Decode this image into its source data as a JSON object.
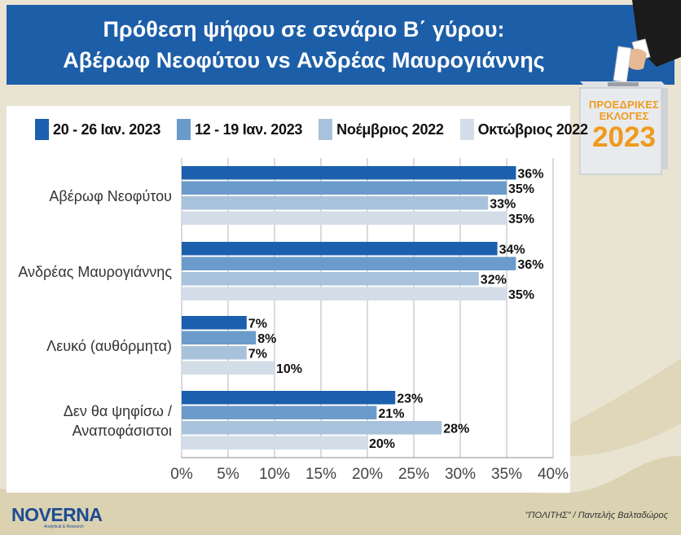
{
  "header": {
    "title_line1": "Πρόθεση ψήφου σε σενάριο Β΄ γύρου:",
    "title_line2": "Αβέρωφ Νεοφύτου vs Ανδρέας Μαυρογιάννης"
  },
  "ballot_box": {
    "line1": "ΠΡΟΕΔΡΙΚΕΣ",
    "line2": "ΕΚΛΟΓΕΣ",
    "line3": "2023"
  },
  "footer": {
    "logo": "NOVERNA",
    "logo_tagline": "Analytical & Research",
    "credit": "\"ΠΟΛΙΤΗΣ\" / Παντελής Βαλταδώρος"
  },
  "chart_data": {
    "type": "bar",
    "orientation": "horizontal",
    "title": "Πρόθεση ψήφου σε σενάριο Β΄ γύρου: Αβέρωφ Νεοφύτου vs Ανδρέας Μαυρογιάννης",
    "xlabel": "",
    "ylabel": "",
    "xlim": [
      0,
      40
    ],
    "x_ticks": [
      0,
      5,
      10,
      15,
      20,
      25,
      30,
      35,
      40
    ],
    "x_tick_labels": [
      "0%",
      "5%",
      "10%",
      "15%",
      "20%",
      "25%",
      "30%",
      "35%",
      "40%"
    ],
    "grid": true,
    "legend_position": "top",
    "categories": [
      [
        "Αβέρωφ Νεοφύτου"
      ],
      [
        "Ανδρέας Μαυρογιάννης"
      ],
      [
        "Λευκό (αυθόρμητα)"
      ],
      [
        "Δεν θα ψηφίσω /",
        "Αναποφάσιστοι"
      ]
    ],
    "series": [
      {
        "name": "20 - 26 Ιαν. 2023",
        "color": "#1c5fae",
        "values": [
          36,
          34,
          7,
          23
        ]
      },
      {
        "name": "12 - 19 Ιαν. 2023",
        "color": "#6b9bcb",
        "values": [
          35,
          36,
          8,
          21
        ]
      },
      {
        "name": "Νοέμβριος 2022",
        "color": "#a9c2dc",
        "values": [
          33,
          32,
          7,
          28
        ]
      },
      {
        "name": "Οκτώβριος 2022",
        "color": "#d2dde8",
        "values": [
          35,
          35,
          10,
          20
        ]
      }
    ]
  }
}
